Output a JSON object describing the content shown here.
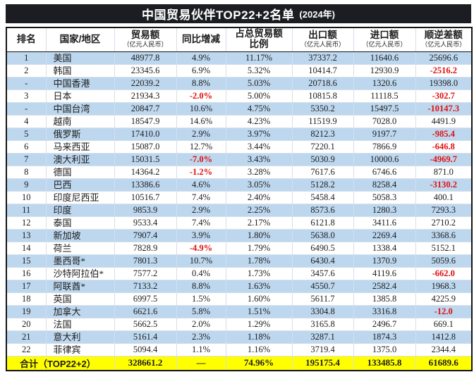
{
  "title": {
    "main": "中国贸易伙伴TOP22+2名单",
    "year": "(2024年)"
  },
  "header": {
    "columns": [
      {
        "label": "排名"
      },
      {
        "label": "国家/地区"
      },
      {
        "label": "贸易额",
        "sub": "（亿元人民币）"
      },
      {
        "label": "同比增减"
      },
      {
        "label": "占总贸易额",
        "label2": "比例"
      },
      {
        "label": "出口额",
        "sub": "（亿元人民币）"
      },
      {
        "label": "进口额",
        "sub": "（亿元人民币）"
      },
      {
        "label": "顺逆差额",
        "sub": "（亿元人民币）"
      }
    ]
  },
  "chart_data": {
    "type": "table",
    "title": "中国贸易伙伴TOP22+2名单（2024年）",
    "columns": [
      "排名",
      "国家/地区",
      "贸易额（亿元人民币）",
      "同比增减",
      "占总贸易额比例",
      "出口额（亿元人民币）",
      "进口额（亿元人民币）",
      "顺逆差额（亿元人民币）"
    ],
    "rows": [
      [
        "1",
        "美国",
        "48977.8",
        "4.9%",
        "11.17%",
        "37337.2",
        "11640.6",
        "25696.6"
      ],
      [
        "2",
        "韩国",
        "23345.6",
        "6.9%",
        "5.32%",
        "10414.7",
        "12930.9",
        "-2516.2"
      ],
      [
        "-",
        "中国香港",
        "22039.2",
        "8.8%",
        "5.03%",
        "20718.6",
        "1320.6",
        "19398.0"
      ],
      [
        "3",
        "日本",
        "21934.3",
        "-2.0%",
        "5.00%",
        "10815.8",
        "11118.5",
        "-302.7"
      ],
      [
        "-",
        "中国台湾",
        "20847.7",
        "10.6%",
        "4.75%",
        "5350.2",
        "15497.5",
        "-10147.3"
      ],
      [
        "4",
        "越南",
        "18547.9",
        "14.6%",
        "4.23%",
        "11519.9",
        "7028.0",
        "4491.9"
      ],
      [
        "5",
        "俄罗斯",
        "17410.0",
        "2.9%",
        "3.97%",
        "8212.3",
        "9197.7",
        "-985.4"
      ],
      [
        "6",
        "马来西亚",
        "15087.0",
        "12.7%",
        "3.44%",
        "7220.1",
        "7866.9",
        "-646.8"
      ],
      [
        "7",
        "澳大利亚",
        "15031.5",
        "-7.0%",
        "3.43%",
        "5030.9",
        "10000.6",
        "-4969.7"
      ],
      [
        "8",
        "德国",
        "14364.2",
        "-1.2%",
        "3.28%",
        "7617.6",
        "6746.6",
        "871.0"
      ],
      [
        "9",
        "巴西",
        "13386.6",
        "4.6%",
        "3.05%",
        "5128.2",
        "8258.4",
        "-3130.2"
      ],
      [
        "10",
        "印度尼西亚",
        "10516.7",
        "7.4%",
        "2.40%",
        "5458.4",
        "5058.3",
        "400.1"
      ],
      [
        "11",
        "印度",
        "9853.9",
        "2.9%",
        "2.25%",
        "8573.6",
        "1280.3",
        "7293.3"
      ],
      [
        "12",
        "泰国",
        "9533.4",
        "7.4%",
        "2.17%",
        "6121.8",
        "3411.6",
        "2710.2"
      ],
      [
        "13",
        "新加坡",
        "7907.4",
        "3.9%",
        "1.80%",
        "5638.0",
        "2269.4",
        "3368.6"
      ],
      [
        "14",
        "荷兰",
        "7828.9",
        "-4.9%",
        "1.79%",
        "6490.5",
        "1338.4",
        "5152.1"
      ],
      [
        "15",
        "墨西哥*",
        "7801.3",
        "10.7%",
        "1.78%",
        "6430.4",
        "1370.9",
        "5059.6"
      ],
      [
        "16",
        "沙特阿拉伯*",
        "7577.2",
        "0.4%",
        "1.73%",
        "3457.6",
        "4119.6",
        "-662.0"
      ],
      [
        "17",
        "阿联酋*",
        "7133.2",
        "8.8%",
        "1.63%",
        "4550.7",
        "2582.4",
        "1968.3"
      ],
      [
        "18",
        "英国",
        "6997.5",
        "1.5%",
        "1.60%",
        "5611.7",
        "1385.8",
        "4225.9"
      ],
      [
        "19",
        "加拿大",
        "6621.6",
        "5.8%",
        "1.51%",
        "3304.8",
        "3316.8",
        "-12.0"
      ],
      [
        "20",
        "法国",
        "5662.5",
        "2.0%",
        "1.29%",
        "3165.8",
        "2496.7",
        "669.1"
      ],
      [
        "21",
        "意大利",
        "5161.4",
        "2.3%",
        "1.18%",
        "3287.1",
        "1874.3",
        "1412.8"
      ],
      [
        "22",
        "菲律宾",
        "5094.4",
        "1.1%",
        "1.16%",
        "3719.4",
        "1375.0",
        "2344.4"
      ]
    ],
    "total": [
      "合计（TOP22+2）",
      "328661.2",
      "—",
      "74.96%",
      "195175.4",
      "133485.8",
      "61689.6"
    ]
  },
  "colors": {
    "title_bg": "#1b1d22",
    "title_text": "#ffffff",
    "row_blue": "#bdd7ee",
    "row_white": "#ffffff",
    "total_bg": "#ffff00",
    "negative": "#e21010",
    "text": "#1c1c1c"
  }
}
